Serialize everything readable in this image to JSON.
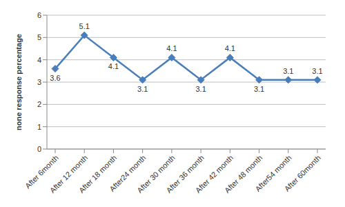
{
  "chart_data": {
    "type": "line",
    "y_label": "none response percentage",
    "categories": [
      "After 6month",
      "After 12 month",
      "After 18 month",
      "After24 month",
      "After 30 month",
      "After 36 month",
      "After 42 month",
      "After 48 month",
      "After54 month",
      "After 60month"
    ],
    "values": [
      3.6,
      5.1,
      4.1,
      3.1,
      4.1,
      3.1,
      4.1,
      3.1,
      3.1,
      3.1
    ],
    "color": "#4a7ebb",
    "marker": "diamond",
    "ylim": [
      0,
      6
    ],
    "yticks": [
      0,
      1,
      2,
      3,
      4,
      5,
      6
    ],
    "grid": true,
    "data_labels": true
  }
}
